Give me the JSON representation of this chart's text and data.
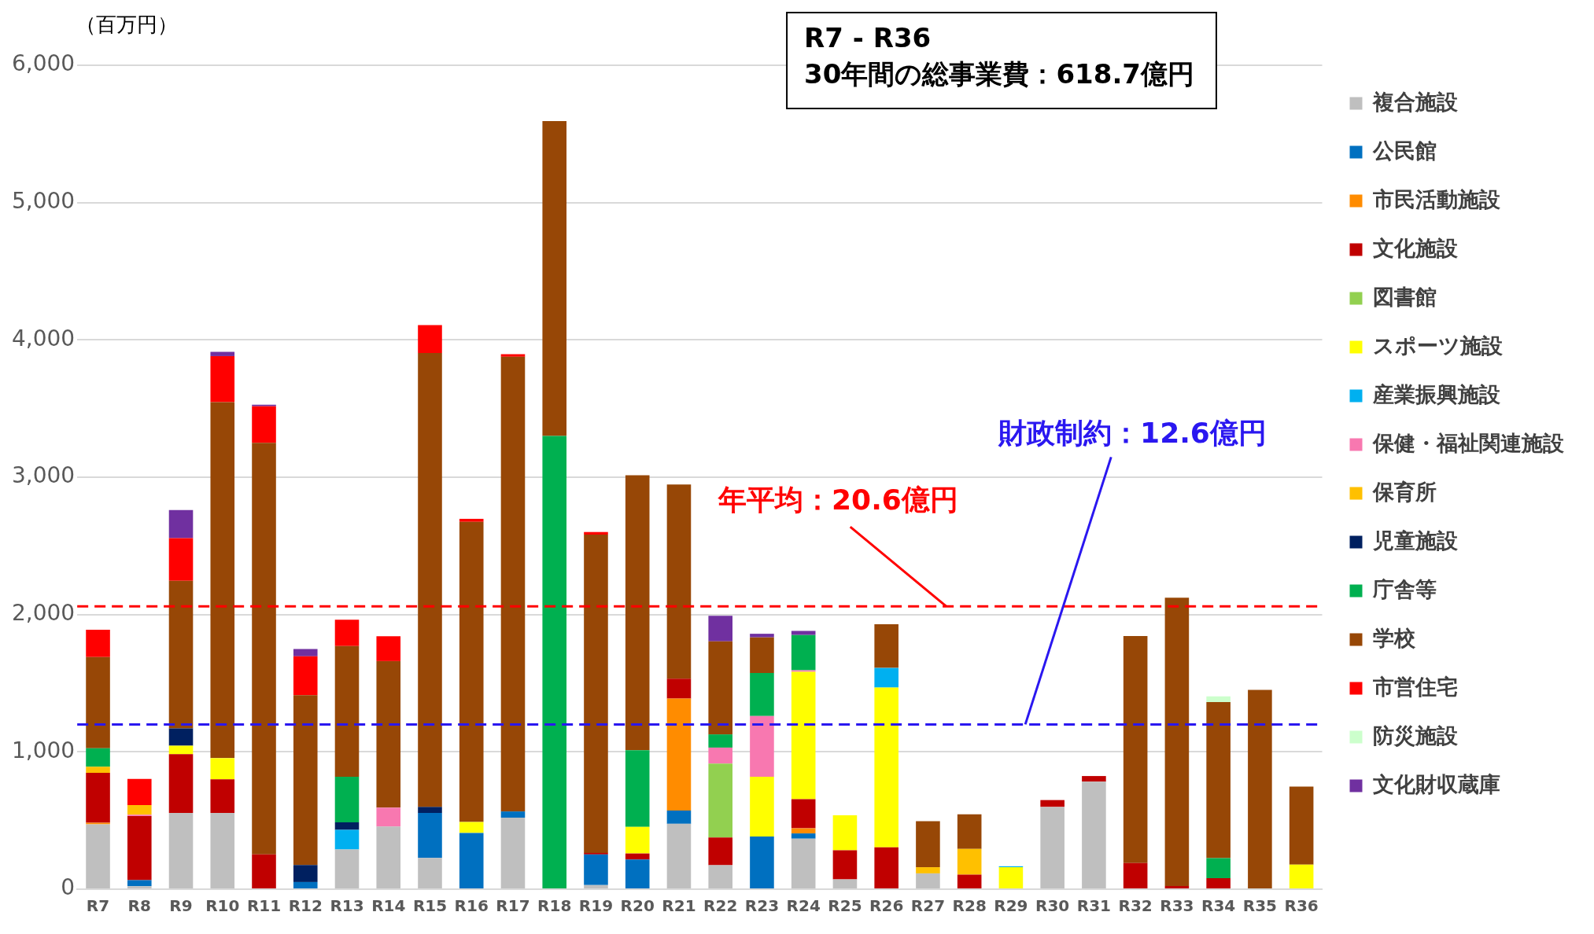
{
  "chart_data": {
    "type": "bar",
    "stacked": true,
    "ylabel": "（百万円）",
    "categories": [
      "R7",
      "R8",
      "R9",
      "R10",
      "R11",
      "R12",
      "R13",
      "R14",
      "R15",
      "R16",
      "R17",
      "R18",
      "R19",
      "R20",
      "R21",
      "R22",
      "R23",
      "R24",
      "R25",
      "R26",
      "R27",
      "R28",
      "R29",
      "R30",
      "R31",
      "R32",
      "R33",
      "R34",
      "R35",
      "R36"
    ],
    "ylim": [
      0,
      6000
    ],
    "yticks": [
      {
        "value": 0,
        "label": "0"
      },
      {
        "value": 1000,
        "label": "1,000"
      },
      {
        "value": 2000,
        "label": "2,000"
      },
      {
        "value": 3000,
        "label": "3,000"
      },
      {
        "value": 4000,
        "label": "4,000"
      },
      {
        "value": 5000,
        "label": "5,000"
      },
      {
        "value": 6000,
        "label": "6,000"
      }
    ],
    "grid": "y",
    "legend": "right",
    "series": [
      {
        "name": "複合施設",
        "color": "#bfbfbf",
        "values": [
          473,
          22,
          555,
          555,
          null,
          null,
          289,
          456,
          228,
          null,
          521,
          null,
          30,
          null,
          476,
          175,
          null,
          368,
          71,
          null,
          115,
          null,
          null,
          599,
          783,
          null,
          null,
          null,
          null,
          null
        ]
      },
      {
        "name": "公民館",
        "color": "#0070c0",
        "values": [
          null,
          44,
          null,
          null,
          null,
          52,
          null,
          null,
          327,
          410,
          45,
          null,
          223,
          216,
          97,
          null,
          383,
          38,
          null,
          null,
          null,
          null,
          null,
          null,
          null,
          null,
          null,
          null,
          null,
          null
        ]
      },
      {
        "name": "市民活動施設",
        "color": "#ff8c00",
        "values": [
          11,
          null,
          null,
          null,
          null,
          null,
          null,
          null,
          null,
          null,
          null,
          null,
          null,
          null,
          815,
          null,
          null,
          37,
          null,
          null,
          null,
          null,
          null,
          null,
          null,
          null,
          null,
          null,
          null,
          null
        ]
      },
      {
        "name": "文化施設",
        "color": "#c00000",
        "values": [
          363,
          467,
          429,
          245,
          253,
          null,
          null,
          null,
          null,
          null,
          null,
          null,
          11,
          44,
          145,
          201,
          null,
          212,
          212,
          305,
          null,
          106,
          null,
          50,
          41,
          191,
          23,
          80,
          null,
          null
        ]
      },
      {
        "name": "図書館",
        "color": "#92d050",
        "values": [
          null,
          null,
          null,
          null,
          null,
          null,
          null,
          null,
          null,
          null,
          null,
          null,
          null,
          null,
          null,
          539,
          null,
          null,
          null,
          null,
          null,
          null,
          null,
          null,
          null,
          null,
          null,
          null,
          null,
          null
        ]
      },
      {
        "name": "スポーツ施設",
        "color": "#ffff00",
        "values": [
          null,
          null,
          61,
          154,
          null,
          null,
          null,
          null,
          null,
          79,
          null,
          null,
          null,
          194,
          null,
          null,
          436,
          928,
          255,
          1163,
          null,
          null,
          160,
          null,
          null,
          null,
          null,
          null,
          null,
          179
        ]
      },
      {
        "name": "産業振興施設",
        "color": "#00b0f0",
        "values": [
          null,
          null,
          null,
          null,
          null,
          null,
          143,
          null,
          null,
          null,
          null,
          null,
          null,
          null,
          null,
          null,
          null,
          null,
          null,
          143,
          null,
          null,
          7,
          null,
          null,
          null,
          null,
          null,
          null,
          null
        ]
      },
      {
        "name": "保健・福祉関連施設",
        "color": "#f878b0",
        "values": [
          null,
          9,
          null,
          null,
          null,
          null,
          null,
          138,
          null,
          null,
          null,
          null,
          null,
          null,
          null,
          116,
          442,
          11,
          null,
          null,
          null,
          null,
          null,
          null,
          null,
          null,
          null,
          null,
          null,
          null
        ]
      },
      {
        "name": "保育所",
        "color": "#ffc000",
        "values": [
          44,
          71,
          null,
          null,
          null,
          null,
          null,
          null,
          null,
          null,
          null,
          null,
          null,
          null,
          null,
          null,
          null,
          null,
          null,
          null,
          45,
          188,
          null,
          null,
          null,
          null,
          null,
          null,
          null,
          null
        ]
      },
      {
        "name": "児童施設",
        "color": "#002060",
        "values": [
          null,
          null,
          126,
          null,
          null,
          124,
          55,
          null,
          44,
          null,
          null,
          null,
          null,
          null,
          null,
          null,
          null,
          null,
          null,
          null,
          null,
          null,
          null,
          null,
          null,
          null,
          null,
          null,
          null,
          null
        ]
      },
      {
        "name": "庁舎等",
        "color": "#00b050",
        "values": [
          135,
          null,
          null,
          null,
          null,
          null,
          332,
          null,
          null,
          null,
          null,
          3300,
          null,
          558,
          null,
          96,
          313,
          257,
          null,
          null,
          null,
          null,
          null,
          null,
          null,
          null,
          null,
          146,
          null,
          null
        ]
      },
      {
        "name": "学校",
        "color": "#974706",
        "values": [
          665,
          null,
          1075,
          2593,
          2997,
          1237,
          952,
          1067,
          3305,
          2186,
          3311,
          2293,
          2318,
          2002,
          1414,
          678,
          260,
          null,
          null,
          318,
          335,
          251,
          null,
          null,
          null,
          1653,
          2100,
          1137,
          1452,
          568
        ]
      },
      {
        "name": "市営住宅",
        "color": "#ff0000",
        "values": [
          198,
          190,
          311,
          335,
          267,
          283,
          192,
          181,
          204,
          22,
          19,
          null,
          19,
          null,
          null,
          null,
          null,
          null,
          null,
          null,
          null,
          null,
          null,
          null,
          null,
          null,
          null,
          null,
          null,
          null
        ]
      },
      {
        "name": "防災施設",
        "color": "#ccffcc",
        "values": [
          null,
          null,
          null,
          null,
          null,
          null,
          null,
          null,
          null,
          null,
          null,
          null,
          null,
          null,
          null,
          null,
          null,
          null,
          null,
          null,
          null,
          null,
          null,
          null,
          null,
          null,
          null,
          41,
          null,
          null
        ]
      },
      {
        "name": "文化財収蔵庫",
        "color": "#7030a0",
        "values": [
          null,
          null,
          204,
          31,
          11,
          53,
          null,
          null,
          null,
          null,
          null,
          null,
          null,
          null,
          null,
          186,
          26,
          30,
          null,
          null,
          null,
          null,
          null,
          null,
          null,
          null,
          null,
          null,
          null,
          null
        ]
      }
    ],
    "ref_lines": [
      {
        "axis": "y",
        "value": 2060,
        "label": "年平均：20.6億円",
        "color": "#ff0000",
        "line_style": "dashed"
      },
      {
        "axis": "y",
        "value": 1200,
        "label": "財政制約：12.6億円",
        "color": "#2a17f0",
        "line_style": "dashed"
      }
    ],
    "annotations": [
      "R7 - R36\n30年間の総事業費：618.7億円"
    ]
  }
}
